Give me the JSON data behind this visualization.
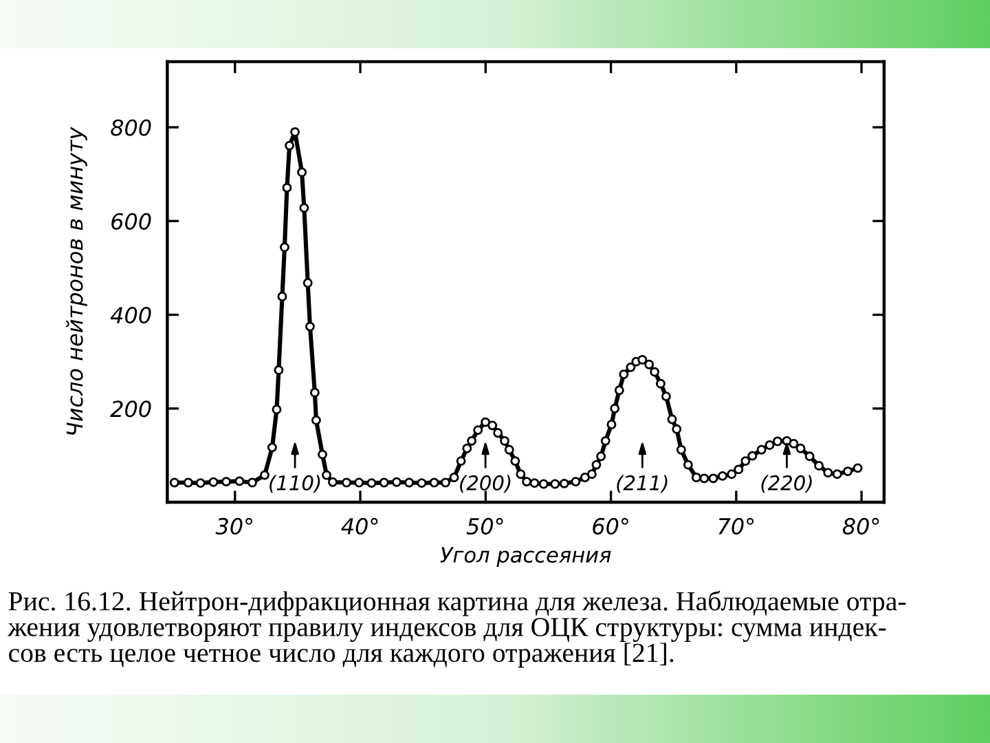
{
  "chart_data": {
    "type": "line",
    "title": "Рис. 16.12. Нейтрон-дифракционная картина для железа. Наблюдаемые отра-\nжения удовлетворяют правилу индексов для ОЦК структуры: сумма индек-\nсов есть целое четное число для каждого отражения [21].",
    "xlabel": "Угол рассеяния",
    "ylabel": "Число нейтронов в минуту",
    "x": [
      25.17,
      26.27,
      27.25,
      28.28,
      29.3,
      30.36,
      31.38,
      32.37,
      32.97,
      33.33,
      33.49,
      33.77,
      33.96,
      34.15,
      34.35,
      34.79,
      35.34,
      35.52,
      35.81,
      35.99,
      36.37,
      36.48,
      36.98,
      37.31,
      37.8,
      38.9,
      39.9,
      40.9,
      41.9,
      42.9,
      43.9,
      44.9,
      45.9,
      46.8,
      47.49,
      48.04,
      48.52,
      48.89,
      49.39,
      49.99,
      50.54,
      50.98,
      51.52,
      51.89,
      52.36,
      52.8,
      53.28,
      53.9,
      54.63,
      55.54,
      56.28,
      57.19,
      57.93,
      58.48,
      58.84,
      59.21,
      59.57,
      60.05,
      60.31,
      60.67,
      61.03,
      61.58,
      62.02,
      62.51,
      63.05,
      63.49,
      63.97,
      64.41,
      64.88,
      65.25,
      65.61,
      66.16,
      66.82,
      67.45,
      68.17,
      68.91,
      69.64,
      70.19,
      70.74,
      71.29,
      72.02,
      72.67,
      73.3,
      74.04,
      74.59,
      75.14,
      75.86,
      76.6,
      77.33,
      78.06,
      78.9,
      79.7
    ],
    "series": [
      {
        "color": "#000000",
        "values": [
          42,
          42,
          41,
          43,
          44,
          45,
          42,
          58,
          117,
          198,
          282,
          439,
          544,
          671,
          761,
          790,
          704,
          628,
          468,
          375,
          234,
          175,
          102,
          58,
          43,
          42,
          42,
          41,
          42,
          43,
          42,
          41,
          42,
          42,
          53,
          88,
          115,
          131,
          154,
          171,
          164,
          148,
          131,
          112,
          88,
          60,
          44,
          41,
          39,
          39,
          40,
          44,
          53,
          60,
          80,
          98,
          131,
          166,
          200,
          239,
          273,
          288,
          300,
          304,
          294,
          278,
          253,
          226,
          177,
          156,
          112,
          80,
          53,
          51,
          51,
          56,
          60,
          70,
          88,
          99,
          112,
          122,
          130,
          131,
          125,
          115,
          98,
          78,
          63,
          60,
          66,
          73
        ]
      }
    ],
    "marker": "circle",
    "line_style": "solid",
    "xlim": [
      24.6,
      81.8
    ],
    "ylim": [
      0,
      940
    ],
    "xticks": [
      {
        "value": 30,
        "label": "30°"
      },
      {
        "value": 40,
        "label": "40°"
      },
      {
        "value": 50,
        "label": "50°"
      },
      {
        "value": 60,
        "label": "60°"
      },
      {
        "value": 70,
        "label": "70°"
      },
      {
        "value": 80,
        "label": "80°"
      }
    ],
    "yticks": [
      200,
      400,
      600,
      800
    ],
    "annotations": [
      "(110)",
      "(200)",
      "(211)",
      "(220)"
    ]
  }
}
